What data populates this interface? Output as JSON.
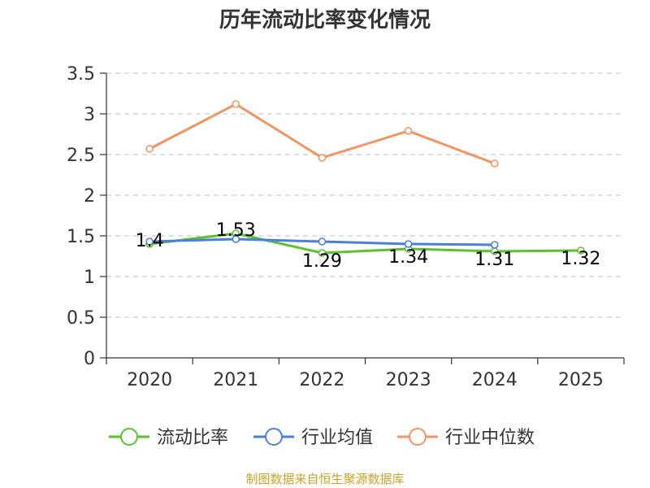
{
  "title": "历年流动比率变化情况",
  "source": "制图数据来自恒生聚源数据库",
  "colors": {
    "流动比率": "#5ac32a",
    "行业均值": "#4a7fdc",
    "行业中位数": "#f4935f",
    "grid": "#cccccc",
    "axis": "#333333",
    "source": "#c9a227"
  },
  "chart_data": {
    "type": "line",
    "title": "历年流动比率变化情况",
    "categories": [
      "2020",
      "2021",
      "2022",
      "2023",
      "2024",
      "2025"
    ],
    "ylim": [
      0,
      3.5
    ],
    "yticks": [
      "0",
      "0.5",
      "1",
      "1.5",
      "2",
      "2.5",
      "3",
      "3.5"
    ],
    "grid": true,
    "legend_position": "bottom",
    "series": [
      {
        "name": "流动比率",
        "values": [
          1.4,
          1.53,
          1.29,
          1.34,
          1.31,
          1.32
        ],
        "labels": [
          "1.4",
          "1.53",
          "1.29",
          "1.34",
          "1.31",
          "1.32"
        ]
      },
      {
        "name": "行业均值",
        "values": [
          1.43,
          1.46,
          1.43,
          1.4,
          1.39,
          null
        ]
      },
      {
        "name": "行业中位数",
        "values": [
          2.57,
          3.12,
          2.46,
          2.79,
          2.39,
          null
        ]
      }
    ]
  }
}
